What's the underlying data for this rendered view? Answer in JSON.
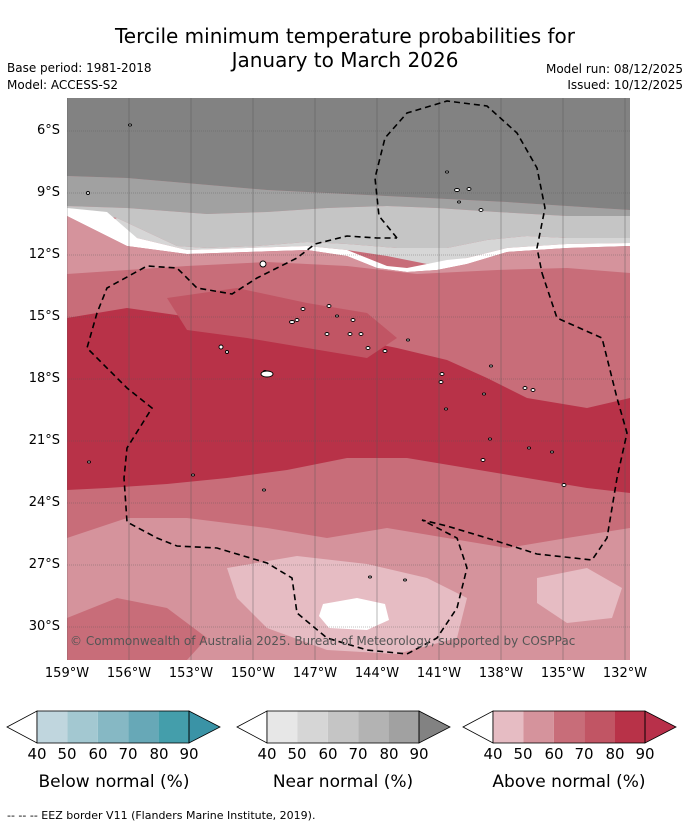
{
  "title": {
    "line1": "Tercile minimum temperature probabilities for",
    "line2": "January to March 2026"
  },
  "meta": {
    "base_period": "Base period: 1981-2018",
    "model": "Model: ACCESS-S2",
    "model_run": "Model run: 08/12/2025",
    "issued": "Issued: 10/12/2025"
  },
  "map": {
    "copyright": "© Commonwealth of Australia 2025. Bureau of Meteorology, supported by COSPPac",
    "lat_labels": [
      "6°S",
      "9°S",
      "12°S",
      "15°S",
      "18°S",
      "21°S",
      "24°S",
      "27°S",
      "30°S"
    ],
    "lon_labels": [
      "159°W",
      "156°W",
      "153°W",
      "150°W",
      "147°W",
      "144°W",
      "141°W",
      "138°W",
      "135°W",
      "132°W"
    ]
  },
  "legend": {
    "below": {
      "title": "Below normal (%)",
      "ticks": [
        "40",
        "50",
        "60",
        "70",
        "80",
        "90"
      ],
      "colors": [
        "#c0d6de",
        "#a3c8d1",
        "#86b8c4",
        "#67a8b7",
        "#449eab",
        "#3a93a6"
      ]
    },
    "near": {
      "title": "Near normal (%)",
      "ticks": [
        "40",
        "50",
        "60",
        "70",
        "80",
        "90"
      ],
      "colors": [
        "#e7e7e7",
        "#d6d6d6",
        "#c5c5c5",
        "#b3b3b3",
        "#a1a1a1",
        "#828282"
      ]
    },
    "above": {
      "title": "Above normal (%)",
      "ticks": [
        "40",
        "50",
        "60",
        "70",
        "80",
        "90"
      ],
      "colors": [
        "#e6bcc3",
        "#d5939c",
        "#c86d79",
        "#c15564",
        "#b83248",
        "#b8304a"
      ]
    }
  },
  "footnote": "-- -- -- EEZ border V11 (Flanders Marine Institute, 2019)."
}
